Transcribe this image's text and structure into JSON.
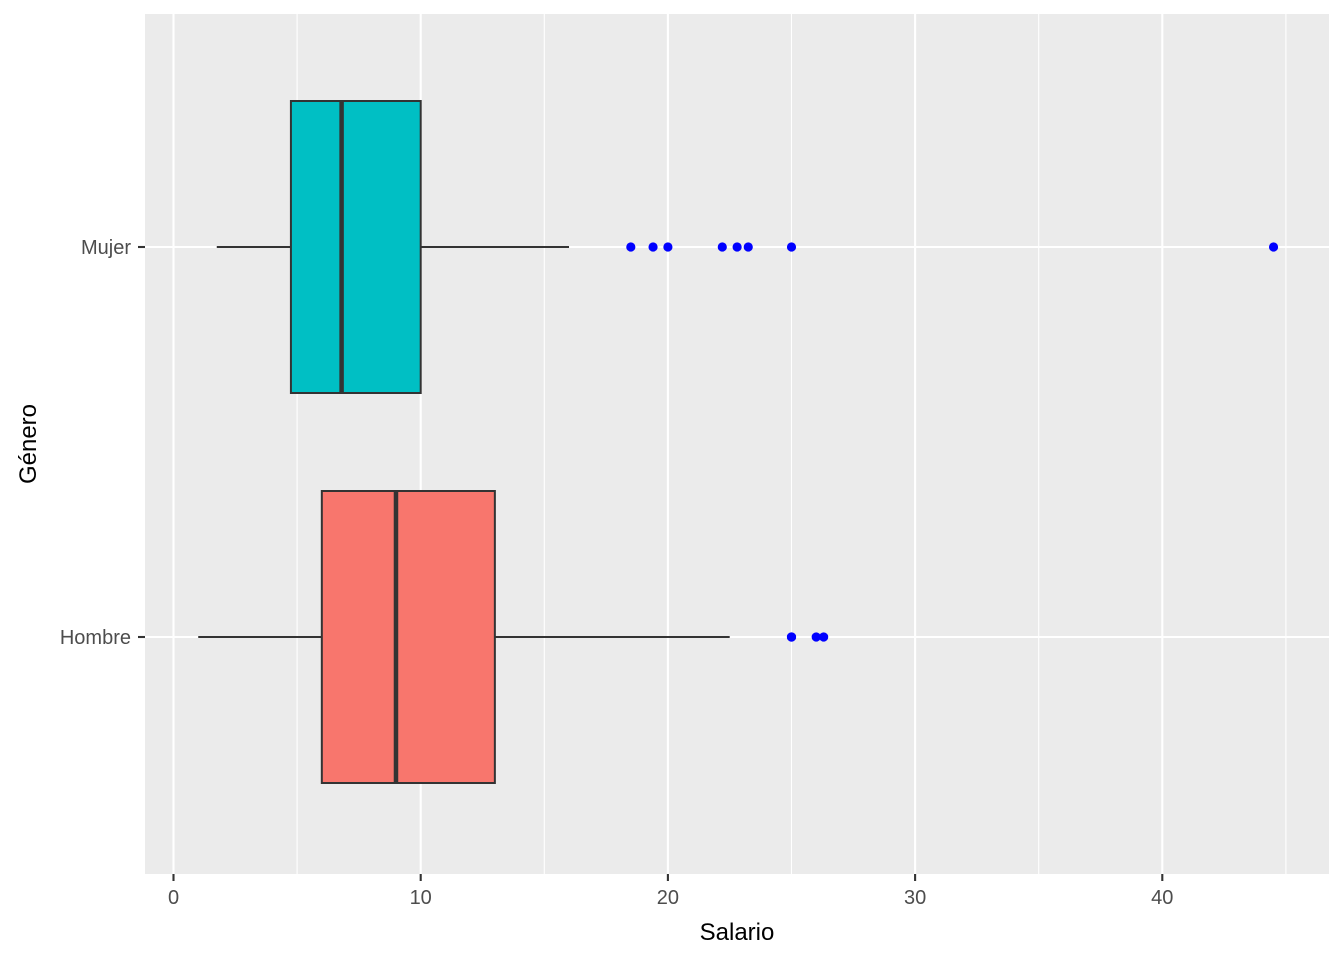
{
  "chart_data": {
    "type": "boxplot",
    "orientation": "horizontal",
    "xlabel": "Salario",
    "ylabel": "Género",
    "xlim": [
      -1.2,
      46.2
    ],
    "x_ticks": [
      0,
      10,
      20,
      30,
      40
    ],
    "x_tick_labels": [
      "0",
      "10",
      "20",
      "30",
      "40"
    ],
    "x_minor_ticks": [
      5,
      15,
      25,
      35,
      45
    ],
    "categories": [
      "Hombre",
      "Mujer"
    ],
    "grid": true,
    "legend": "none",
    "series": [
      {
        "category": "Hombre",
        "color": "#F8766D",
        "whisker_low": 1,
        "q1": 6,
        "median": 9,
        "q3": 13,
        "whisker_high": 22.5,
        "outliers": [
          25,
          25,
          26,
          26.3
        ]
      },
      {
        "category": "Mujer",
        "color": "#00BFC4",
        "whisker_low": 1.75,
        "q1": 4.75,
        "median": 6.8,
        "q3": 10,
        "whisker_high": 16,
        "outliers": [
          18.5,
          19.4,
          20,
          22.2,
          22.8,
          23.25,
          25,
          44.5
        ]
      }
    ],
    "outlier_color": "#0000FF"
  }
}
